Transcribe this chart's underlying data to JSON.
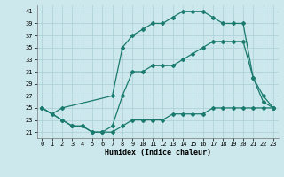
{
  "line1_x": [
    0,
    1,
    2,
    7,
    8,
    9,
    10,
    11,
    12,
    13,
    14,
    15,
    16,
    17,
    18,
    19,
    20,
    21,
    22,
    23
  ],
  "line1_y": [
    25,
    24,
    25,
    27,
    35,
    37,
    38,
    39,
    39,
    40,
    41,
    41,
    41,
    40,
    39,
    39,
    39,
    30,
    27,
    25
  ],
  "line2_x": [
    0,
    2,
    3,
    4,
    5,
    6,
    7,
    8,
    9,
    10,
    11,
    12,
    13,
    14,
    15,
    16,
    17,
    18,
    19,
    20,
    21,
    22,
    23
  ],
  "line2_y": [
    25,
    23,
    22,
    22,
    21,
    21,
    22,
    27,
    31,
    31,
    32,
    32,
    32,
    33,
    34,
    35,
    36,
    36,
    36,
    36,
    30,
    26,
    25
  ],
  "line3_x": [
    0,
    2,
    3,
    4,
    5,
    6,
    7,
    8,
    9,
    10,
    11,
    12,
    13,
    14,
    15,
    16,
    17,
    18,
    19,
    20,
    21,
    22,
    23
  ],
  "line3_y": [
    25,
    23,
    22,
    22,
    21,
    21,
    21,
    22,
    23,
    23,
    23,
    23,
    24,
    24,
    24,
    24,
    25,
    25,
    25,
    25,
    25,
    25,
    25
  ],
  "line_color": "#1a7a6e",
  "bg_color": "#cce8ec",
  "grid_color": "#aacdd4",
  "xlabel": "Humidex (Indice chaleur)",
  "xlim": [
    -0.5,
    23.5
  ],
  "ylim": [
    20.0,
    42.0
  ],
  "yticks": [
    21,
    23,
    25,
    27,
    29,
    31,
    33,
    35,
    37,
    39,
    41
  ],
  "xticks": [
    0,
    1,
    2,
    3,
    4,
    5,
    6,
    7,
    8,
    9,
    10,
    11,
    12,
    13,
    14,
    15,
    16,
    17,
    18,
    19,
    20,
    21,
    22,
    23
  ],
  "marker": "D",
  "marker_size": 2.0,
  "linewidth": 0.9,
  "tick_fontsize": 5.0,
  "xlabel_fontsize": 6.0
}
